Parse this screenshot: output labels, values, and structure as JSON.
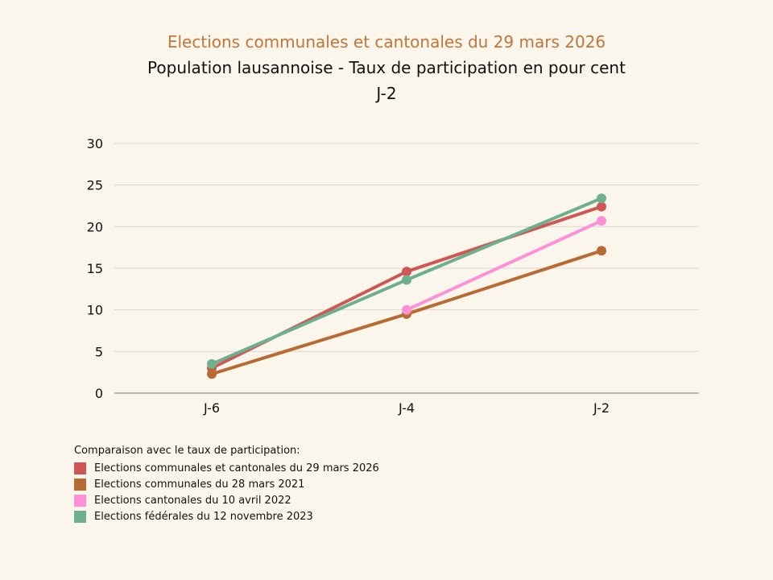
{
  "titles": {
    "main": "Elections communales et cantonales du 29 mars 2026",
    "subtitle": "Population lausannoise - Taux de participation en pour cent",
    "day": "J-2"
  },
  "chart_data": {
    "type": "line",
    "title": "Elections communales et cantonales du 29 mars 2026",
    "subtitle": "Population lausannoise - Taux de participation en pour cent - J-2",
    "xlabel": "",
    "ylabel": "",
    "categories": [
      "J-6",
      "J-4",
      "J-2"
    ],
    "yticks": [
      0,
      5,
      10,
      15,
      20,
      25,
      30
    ],
    "ylim": [
      0,
      30
    ],
    "grid": true,
    "legend_position": "bottom-left",
    "legend_title": "Comparaison avec le taux de participation:",
    "series": [
      {
        "name": "Elections communales et cantonales du 29 mars 2026",
        "color": "#d05555",
        "values": [
          3.0,
          14.6,
          22.4
        ]
      },
      {
        "name": "Elections communales du 28 mars 2021",
        "color": "#b96a32",
        "values": [
          2.3,
          9.5,
          17.1
        ]
      },
      {
        "name": "Elections cantonales du 10 avril 2022",
        "color": "#ff90d8",
        "values": [
          null,
          10.0,
          20.7
        ]
      },
      {
        "name": "Elections fédérales du 12 novembre 2023",
        "color": "#6db08e",
        "values": [
          3.5,
          13.6,
          23.4
        ]
      }
    ]
  }
}
